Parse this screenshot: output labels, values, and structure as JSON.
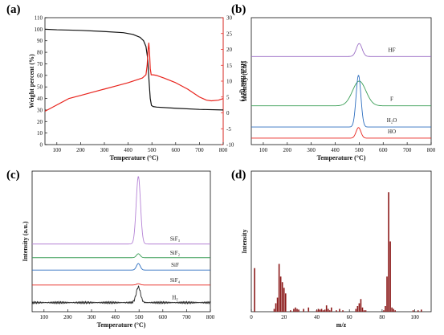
{
  "panels": {
    "a": "(a)",
    "b": "(b)",
    "c": "(c)",
    "d": "(d)"
  },
  "chart_data": [
    {
      "panel": "(a)",
      "type": "line",
      "xlabel": "Temperature (°C)",
      "ylabel": "Weight percent (%)",
      "y2label": "Heat flow (μV)",
      "xlim": [
        50,
        800
      ],
      "ylim": [
        0,
        110
      ],
      "y2lim": [
        -10,
        30
      ],
      "xticks": [
        100,
        200,
        300,
        400,
        500,
        600,
        700,
        800
      ],
      "yticks": [
        0,
        10,
        20,
        30,
        40,
        50,
        60,
        70,
        80,
        90,
        100,
        110
      ],
      "y2ticks": [
        -10,
        -5,
        0,
        5,
        10,
        15,
        20,
        25,
        30
      ],
      "colors": {
        "weight": "#111111",
        "heat": "#e8231c",
        "y2axis": "#e8231c"
      },
      "series": [
        {
          "key": "weight",
          "axis": "left",
          "x": [
            50,
            100,
            200,
            300,
            380,
            420,
            450,
            465,
            475,
            482,
            488,
            493,
            498,
            505,
            520,
            600,
            700,
            800
          ],
          "y": [
            100,
            99.5,
            99,
            98,
            97,
            95.5,
            93,
            90,
            85,
            75,
            55,
            40,
            34,
            33,
            32.5,
            31.5,
            30.5,
            30
          ]
        },
        {
          "key": "heat",
          "axis": "right",
          "x": [
            50,
            100,
            150,
            200,
            250,
            300,
            350,
            400,
            440,
            460,
            475,
            480,
            484,
            487,
            490,
            493,
            497,
            505,
            520,
            550,
            600,
            650,
            700,
            730,
            750,
            780,
            800
          ],
          "y": [
            0.5,
            2.5,
            4.5,
            5.5,
            6.5,
            7.5,
            8.5,
            9.5,
            10.5,
            11,
            12,
            15,
            20,
            22,
            19,
            14,
            12,
            12,
            11.8,
            11,
            9.5,
            7.5,
            5,
            4,
            3.8,
            4,
            4.5
          ]
        }
      ]
    },
    {
      "panel": "(b)",
      "type": "line",
      "xlabel": "Temperature (°C)",
      "ylabel": "Intensity (a.u.)",
      "xlim": [
        50,
        800
      ],
      "xticks": [
        100,
        200,
        300,
        400,
        500,
        600,
        700,
        800
      ],
      "series_labels": [
        "HF",
        "F",
        "H₂O",
        "HO"
      ],
      "series": [
        {
          "name": "HF",
          "color": "#9b6fc5",
          "baseline": 0.75,
          "peak": 500,
          "height": 0.11,
          "width": 12
        },
        {
          "name": "F",
          "color": "#3a9e56",
          "baseline": 0.33,
          "peak": 500,
          "height": 0.21,
          "width": 28
        },
        {
          "name": "H₂O",
          "color": "#2e6fc0",
          "baseline": 0.15,
          "peak": 497,
          "height": 0.44,
          "width": 10
        },
        {
          "name": "HO",
          "color": "#e8231c",
          "baseline": 0.055,
          "peak": 497,
          "height": 0.09,
          "width": 10
        }
      ]
    },
    {
      "panel": "(c)",
      "type": "line",
      "xlabel": "Temperature (°C)",
      "ylabel": "Intensity (a.u.)",
      "xlim": [
        50,
        800
      ],
      "xticks": [
        100,
        200,
        300,
        400,
        500,
        600,
        700,
        800
      ],
      "series_labels": [
        "SiF₃",
        "SiF₂",
        "SiF",
        "SiF₄",
        "H₂"
      ],
      "series": [
        {
          "name": "SiF₃",
          "color": "#b583d6",
          "baseline": 0.52,
          "peak": 497,
          "height": 0.52,
          "width": 9
        },
        {
          "name": "SiF₂",
          "color": "#3a9e56",
          "baseline": 0.415,
          "peak": 497,
          "height": 0.03,
          "width": 8
        },
        {
          "name": "SiF",
          "color": "#2e6fc0",
          "baseline": 0.32,
          "peak": 497,
          "height": 0.05,
          "width": 8
        },
        {
          "name": "SiF₄",
          "color": "#e8231c",
          "baseline": 0.205,
          "peak": 497,
          "height": 0.01,
          "width": 8
        },
        {
          "name": "H₂",
          "color": "#222222",
          "baseline": 0.07,
          "peak": 497,
          "height": 0.12,
          "width": 9
        }
      ]
    },
    {
      "panel": "(d)",
      "type": "bar",
      "xlabel": "m/z",
      "ylabel": "Intensity",
      "xlim": [
        0,
        110
      ],
      "ylim": [
        0,
        1
      ],
      "xticks": [
        0,
        20,
        40,
        60,
        80,
        100
      ],
      "color": "#8b1a1a",
      "x": [
        2,
        14,
        15,
        16,
        17,
        18,
        19,
        20,
        21,
        24,
        26,
        27,
        28,
        29,
        32,
        35,
        40,
        41,
        42,
        43,
        44,
        45,
        46,
        47,
        48,
        49,
        52,
        54,
        56,
        64,
        65,
        66,
        67,
        68,
        69,
        70,
        81,
        82,
        83,
        84,
        85,
        86,
        87,
        88,
        99,
        102,
        104
      ],
      "values": [
        0.31,
        0.02,
        0.06,
        0.1,
        0.34,
        0.25,
        0.21,
        0.17,
        0.13,
        0.01,
        0.02,
        0.03,
        0.02,
        0.015,
        0.02,
        0.03,
        0.01,
        0.02,
        0.015,
        0.02,
        0.01,
        0.015,
        0.045,
        0.02,
        0.01,
        0.03,
        0.01,
        0.02,
        0.01,
        0.02,
        0.04,
        0.06,
        0.09,
        0.03,
        0.01,
        0.01,
        0.01,
        0.04,
        0.25,
        0.85,
        0.5,
        0.03,
        0.02,
        0.01,
        0.01,
        0.01,
        0.015
      ]
    }
  ]
}
